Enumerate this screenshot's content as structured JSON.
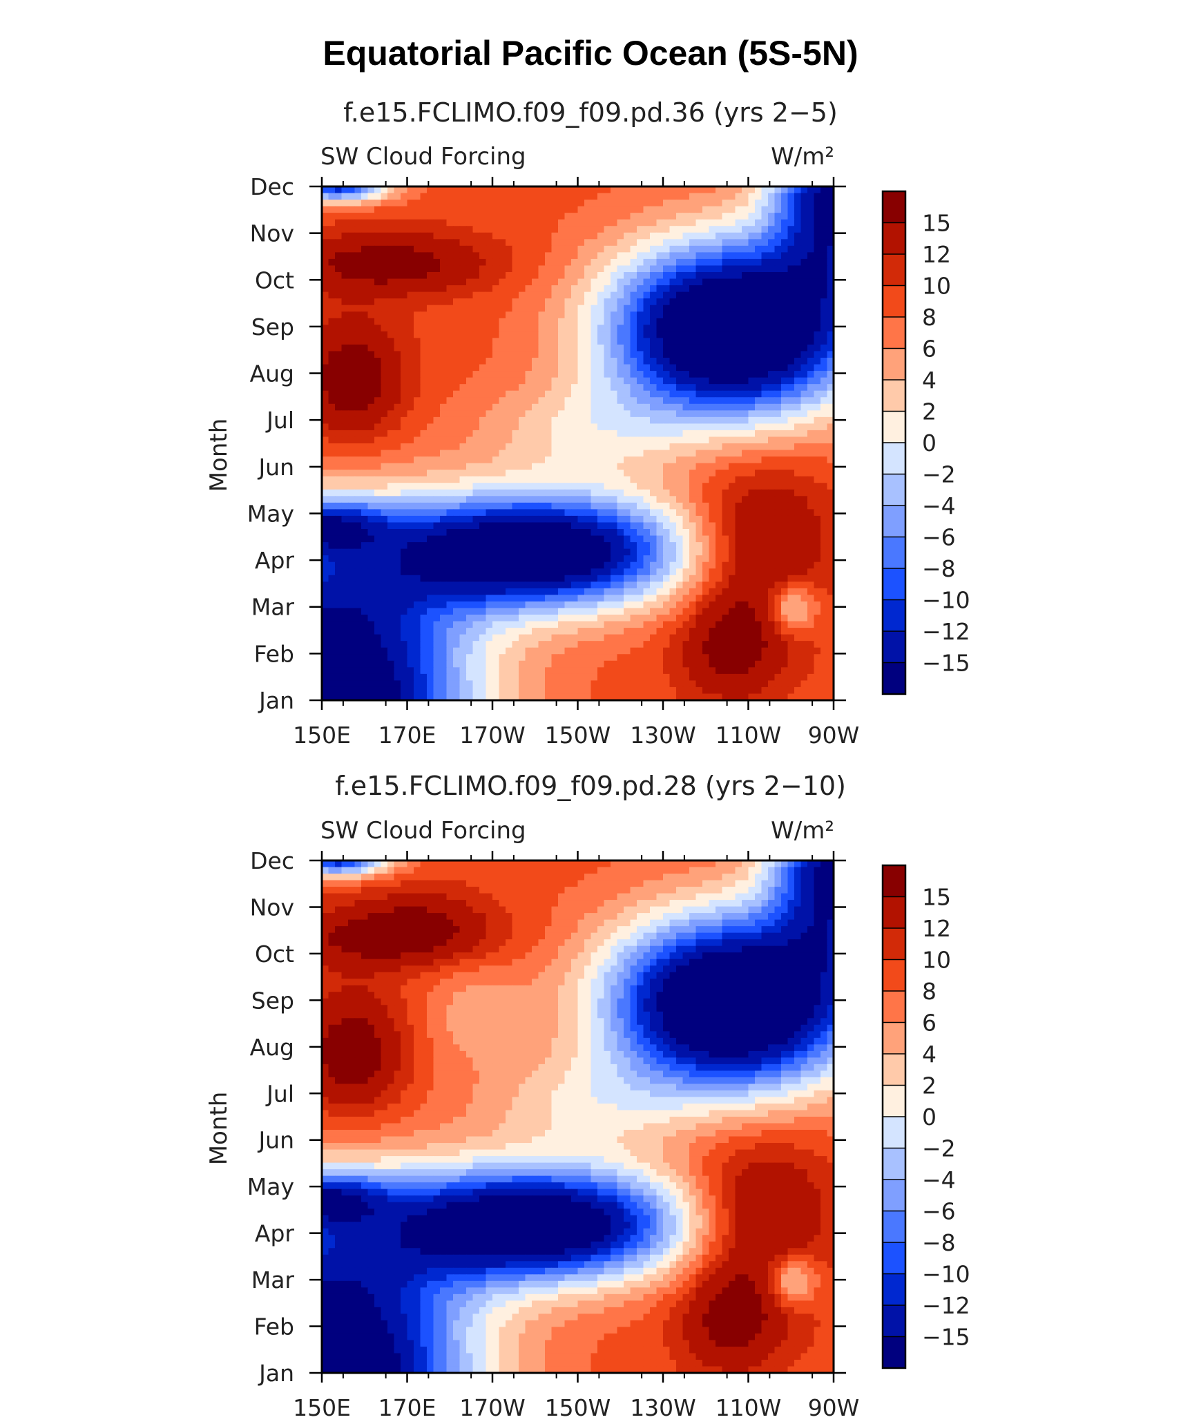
{
  "title": "Equatorial Pacific Ocean (5S-5N)",
  "chart_data": [
    {
      "type": "heatmap",
      "subtitle": "f.e15.FCLIMO.f09_f09.pd.36 (yrs 2−5)",
      "left_label": "SW Cloud Forcing",
      "right_label": "W/m²",
      "ylabel": "Month",
      "x_ticks": [
        "150E",
        "170E",
        "170W",
        "150W",
        "130W",
        "110W",
        "90W"
      ],
      "y_ticks": [
        "Jan",
        "Feb",
        "Mar",
        "Apr",
        "May",
        "Jun",
        "Jul",
        "Aug",
        "Sep",
        "Oct",
        "Nov",
        "Dec"
      ],
      "x_range": [
        "150E",
        "90W"
      ],
      "y_range": [
        "Jan",
        "Dec"
      ],
      "colorbar_labels": [
        "15",
        "12",
        "10",
        "8",
        "6",
        "4",
        "2",
        "0",
        "−2",
        "−4",
        "−6",
        "−8",
        "−10",
        "−12",
        "−15"
      ],
      "colorbar_levels": [
        -15,
        -12,
        -10,
        -8,
        -6,
        -4,
        -2,
        0,
        2,
        4,
        6,
        8,
        10,
        12,
        15
      ],
      "field_description_values": [
        {
          "lon": "150E",
          "month": "Jan",
          "value": -18
        },
        {
          "lon": "160W",
          "month": "Apr",
          "value": -18
        },
        {
          "lon": "110W",
          "month": "Aug",
          "value": -18
        },
        {
          "lon": "155E",
          "month": "Oct",
          "value": 16
        },
        {
          "lon": "155E",
          "month": "Jul",
          "value": 16
        },
        {
          "lon": "105W",
          "month": "Apr",
          "value": 16
        },
        {
          "lon": "110W",
          "month": "Feb",
          "value": 16
        }
      ]
    },
    {
      "type": "heatmap",
      "subtitle": "f.e15.FCLIMO.f09_f09.pd.28 (yrs 2−10)",
      "left_label": "SW Cloud Forcing",
      "right_label": "W/m²",
      "ylabel": "Month",
      "x_ticks": [
        "150E",
        "170E",
        "170W",
        "150W",
        "130W",
        "110W",
        "90W"
      ],
      "y_ticks": [
        "Jan",
        "Feb",
        "Mar",
        "Apr",
        "May",
        "Jun",
        "Jul",
        "Aug",
        "Sep",
        "Oct",
        "Nov",
        "Dec"
      ],
      "x_range": [
        "150E",
        "90W"
      ],
      "y_range": [
        "Jan",
        "Dec"
      ],
      "colorbar_labels": [
        "15",
        "12",
        "10",
        "8",
        "6",
        "4",
        "2",
        "0",
        "−2",
        "−4",
        "−6",
        "−8",
        "−10",
        "−12",
        "−15"
      ],
      "colorbar_levels": [
        -15,
        -12,
        -10,
        -8,
        -6,
        -4,
        -2,
        0,
        2,
        4,
        6,
        8,
        10,
        12,
        15
      ]
    }
  ],
  "colors": [
    "#00007f",
    "#0012a8",
    "#0028d0",
    "#1c52ff",
    "#4a78ff",
    "#7f9fff",
    "#a8c1ff",
    "#d4e4ff",
    "#fff0e0",
    "#ffcaaa",
    "#ffa27a",
    "#ff7548",
    "#f24a1a",
    "#d22a08",
    "#b21200",
    "#880000"
  ],
  "colors_note_ignore": ""
}
